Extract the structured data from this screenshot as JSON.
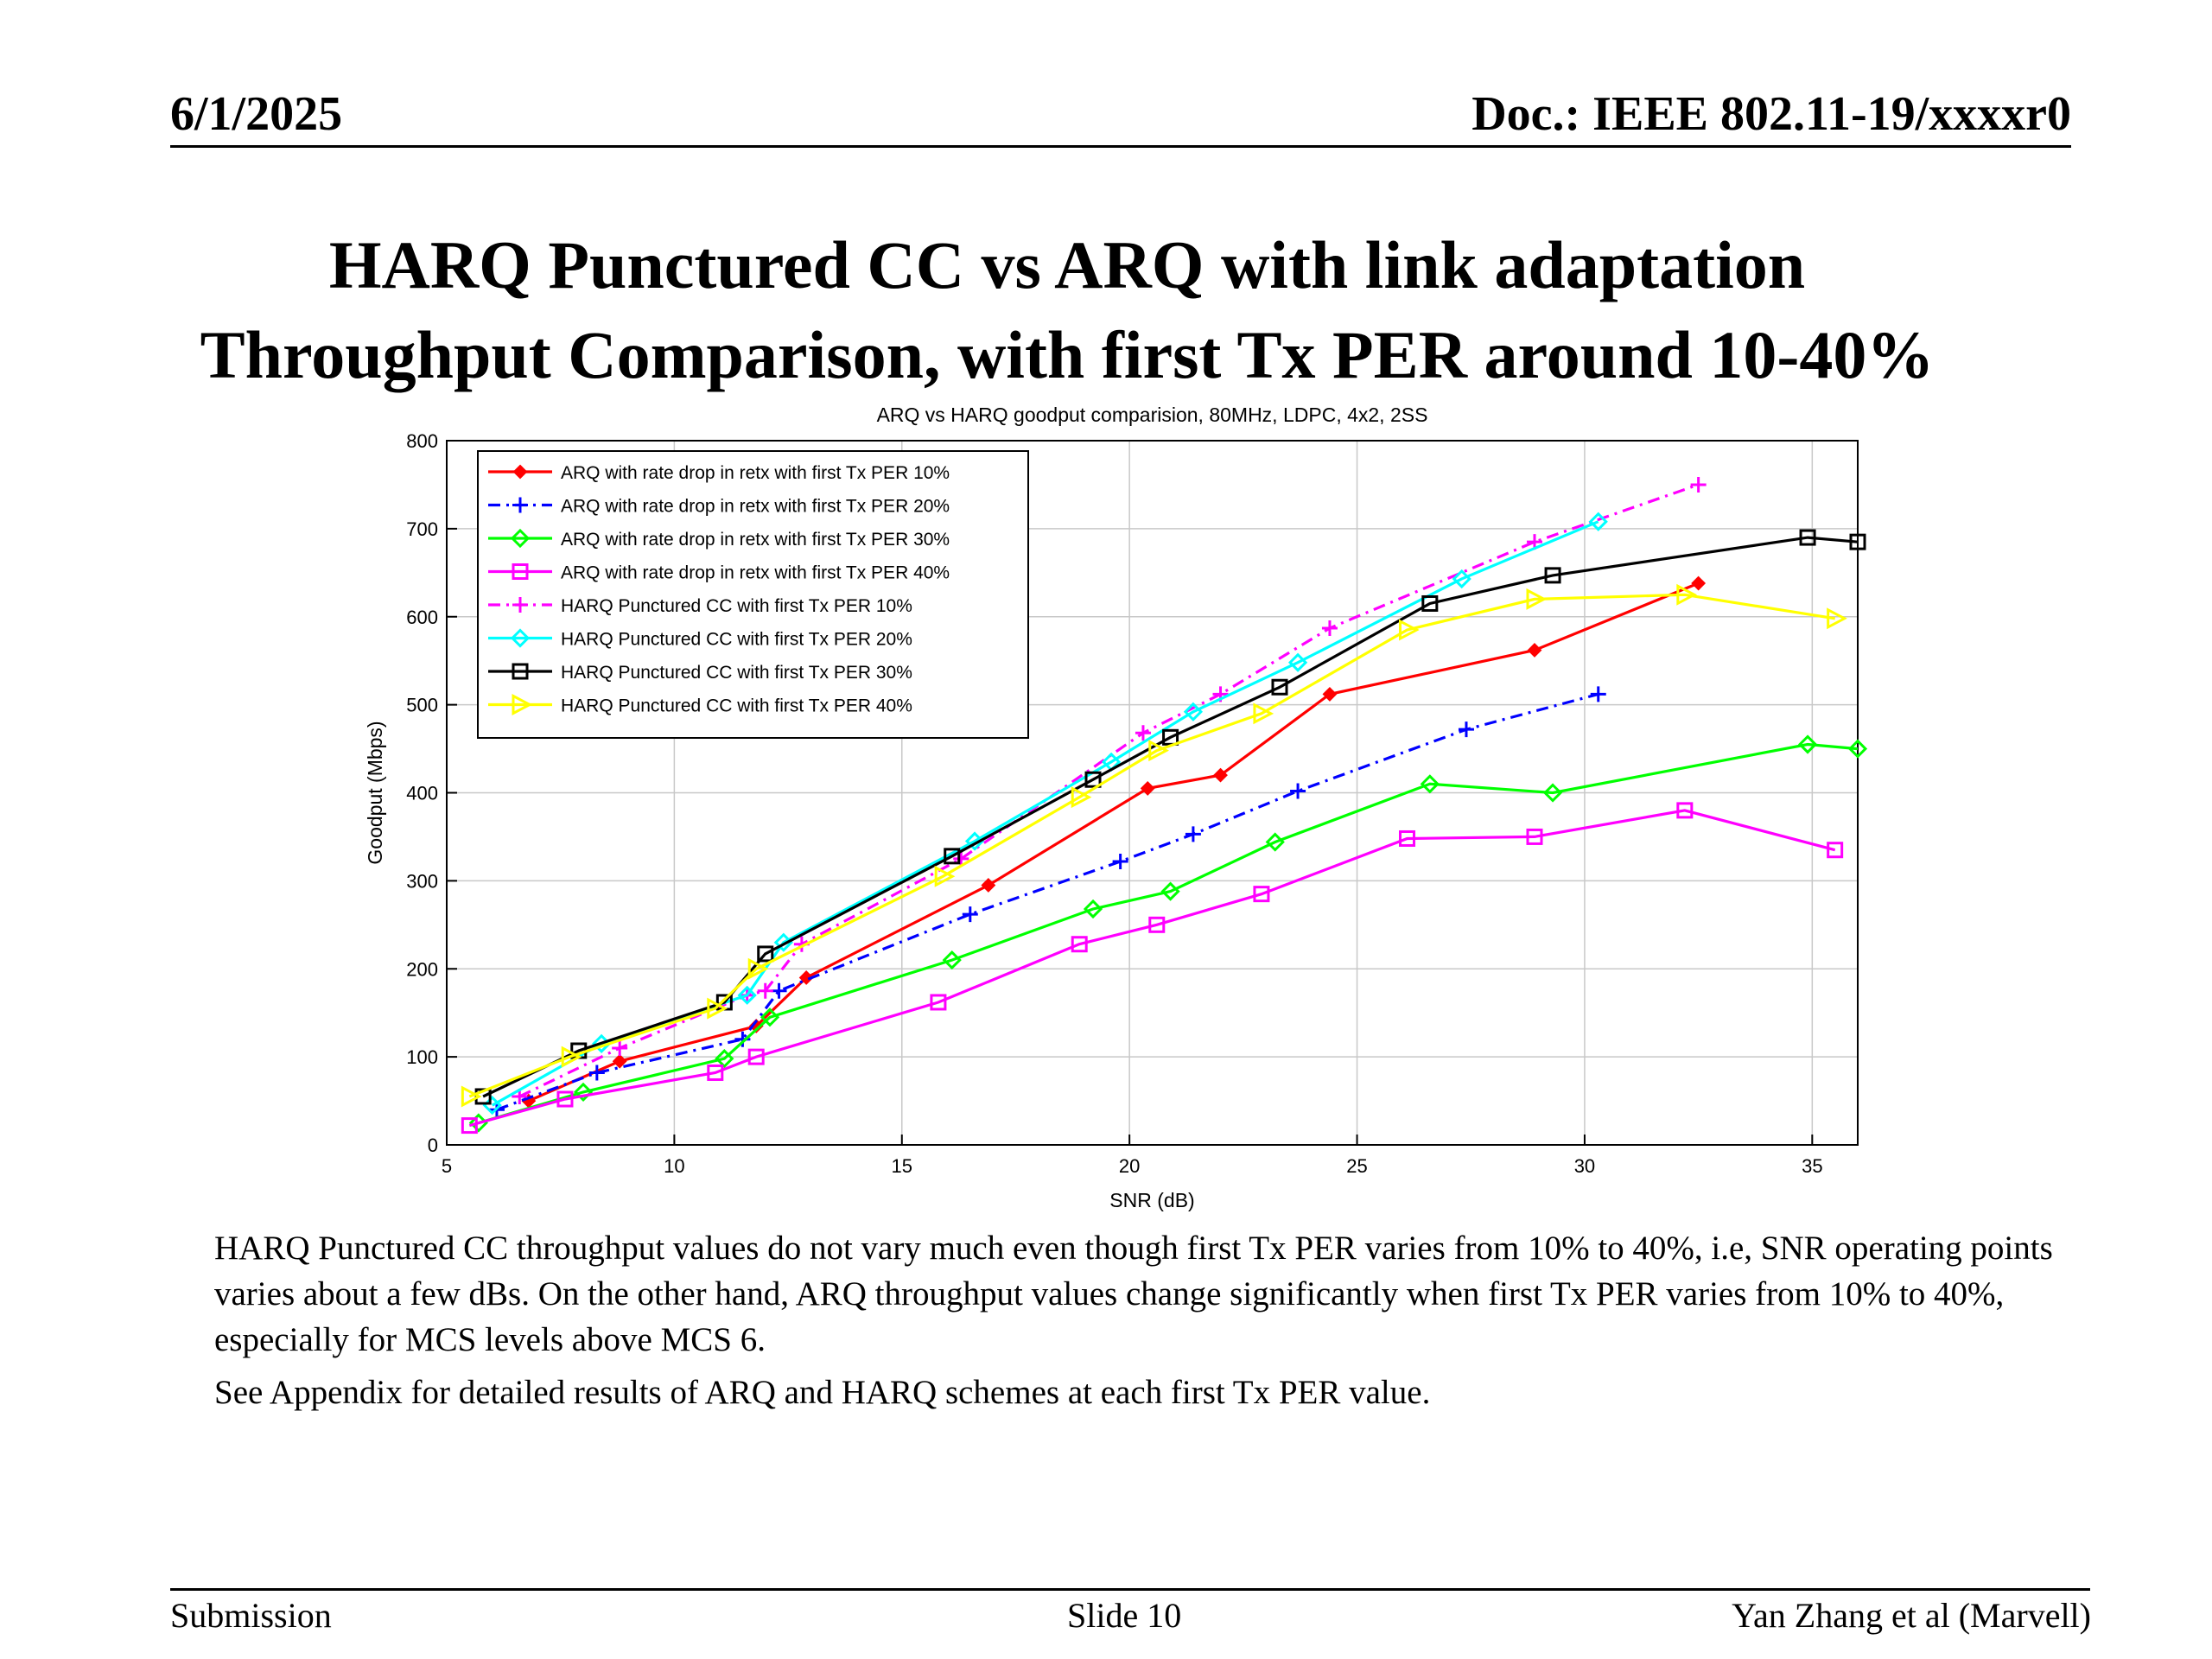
{
  "header": {
    "date": "6/1/2025",
    "doc": "Doc.: IEEE 802.11-19/xxxxr0"
  },
  "title": {
    "line1": "HARQ Punctured CC vs ARQ with link adaptation",
    "line2": "Throughput Comparison, with first Tx PER around 10-40%"
  },
  "body": {
    "para1": "HARQ Punctured CC throughput values do not vary much even though first Tx PER varies from 10% to 40%, i.e, SNR operating points varies about a few dBs. On the other hand, ARQ throughput values change significantly when first Tx PER varies from 10% to 40%, especially for MCS levels above MCS 6.",
    "para2": "See Appendix for detailed results of ARQ and HARQ schemes at each first Tx PER value."
  },
  "footer": {
    "left": "Submission",
    "center": "Slide 10",
    "right": "Yan Zhang et al (Marvell)"
  },
  "chart_data": {
    "type": "line",
    "title": "ARQ vs HARQ goodput comparision, 80MHz, LDPC, 4x2, 2SS",
    "xlabel": "SNR (dB)",
    "ylabel": "Goodput (Mbps)",
    "xlim": [
      5,
      36
    ],
    "ylim": [
      0,
      800
    ],
    "xticks": [
      5,
      10,
      15,
      20,
      25,
      30,
      35
    ],
    "yticks": [
      0,
      100,
      200,
      300,
      400,
      500,
      600,
      700,
      800
    ],
    "grid": true,
    "legend_position": "top-left",
    "series": [
      {
        "name": "ARQ with rate drop in retx with first Tx PER 10%",
        "color": "#ff0000",
        "dash": "solid",
        "marker": "diamond-small",
        "x": [
          6.8,
          8.8,
          11.8,
          12.9,
          16.9,
          20.4,
          22.0,
          24.4,
          28.9,
          32.5
        ],
        "y": [
          50,
          95,
          135,
          190,
          295,
          405,
          420,
          512,
          562,
          638
        ]
      },
      {
        "name": "ARQ with rate drop in retx with first Tx PER 20%",
        "color": "#0000ff",
        "dash": "dashdot",
        "marker": "plus",
        "x": [
          6.1,
          8.3,
          11.5,
          12.3,
          16.5,
          19.8,
          21.4,
          23.7,
          27.4,
          30.3
        ],
        "y": [
          40,
          82,
          120,
          175,
          262,
          322,
          353,
          402,
          472,
          512
        ]
      },
      {
        "name": "ARQ with rate drop in retx with first Tx PER 30%",
        "color": "#00ff00",
        "dash": "solid",
        "marker": "diamond",
        "x": [
          5.7,
          8.0,
          11.1,
          12.1,
          16.1,
          19.2,
          20.9,
          23.2,
          26.6,
          29.3,
          34.9,
          36.0
        ],
        "y": [
          25,
          60,
          98,
          145,
          210,
          268,
          288,
          344,
          410,
          400,
          455,
          450
        ]
      },
      {
        "name": "ARQ with rate drop in retx with first Tx PER 40%",
        "color": "#ff00ff",
        "dash": "solid",
        "marker": "square",
        "x": [
          5.5,
          7.6,
          10.9,
          11.8,
          15.8,
          18.9,
          20.6,
          22.9,
          26.1,
          28.9,
          32.2,
          35.5
        ],
        "y": [
          22,
          52,
          82,
          100,
          162,
          228,
          250,
          285,
          348,
          350,
          380,
          335
        ]
      },
      {
        "name": "HARQ Punctured CC with first Tx PER 10%",
        "color": "#ff00ff",
        "dash": "dashdot",
        "marker": "plus",
        "x": [
          6.6,
          8.8,
          11.6,
          12.0,
          12.8,
          16.3,
          20.3,
          22.0,
          24.4,
          28.9,
          32.5
        ],
        "y": [
          55,
          110,
          170,
          175,
          228,
          325,
          468,
          512,
          587,
          685,
          750
        ]
      },
      {
        "name": "HARQ Punctured CC with first Tx PER 20%",
        "color": "#00ffff",
        "dash": "solid",
        "marker": "diamond",
        "x": [
          6.0,
          8.4,
          11.6,
          12.4,
          16.6,
          19.6,
          21.4,
          23.7,
          27.3,
          30.3
        ],
        "y": [
          45,
          115,
          170,
          230,
          345,
          435,
          492,
          548,
          643,
          708
        ]
      },
      {
        "name": "HARQ Punctured CC with first Tx PER 30%",
        "color": "#000000",
        "dash": "solid",
        "marker": "square",
        "x": [
          5.8,
          7.9,
          11.1,
          12.0,
          16.1,
          19.2,
          20.9,
          23.3,
          26.6,
          29.3,
          34.9,
          36.0
        ],
        "y": [
          55,
          107,
          162,
          217,
          328,
          415,
          463,
          520,
          615,
          647,
          690,
          685
        ]
      },
      {
        "name": "HARQ Punctured CC with first Tx PER 40%",
        "color": "#ffff00",
        "dash": "solid",
        "marker": "triangle-right",
        "x": [
          5.5,
          7.7,
          10.9,
          11.8,
          15.9,
          18.9,
          20.6,
          22.9,
          26.1,
          28.9,
          32.2,
          35.5
        ],
        "y": [
          55,
          100,
          155,
          200,
          305,
          395,
          448,
          490,
          585,
          620,
          625,
          598
        ]
      }
    ]
  }
}
